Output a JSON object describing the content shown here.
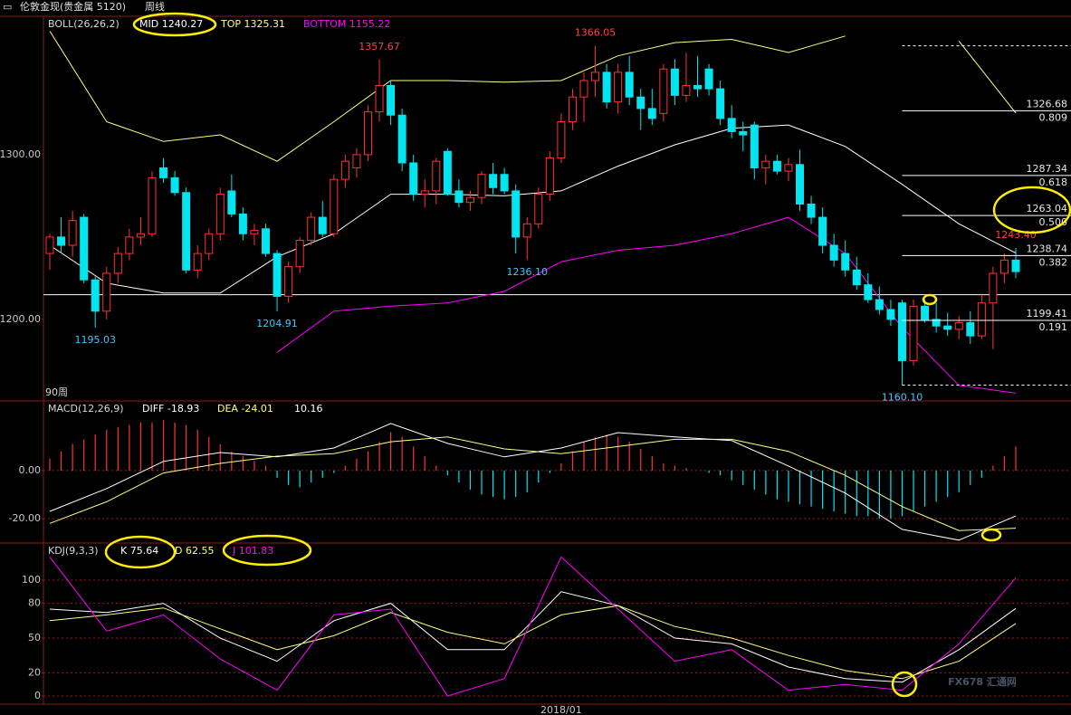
{
  "header": {
    "symbol": "伦敦金现(贵金属 5120)",
    "period": "周线"
  },
  "chart_data": [
    {
      "type": "candlestick",
      "indicator": "BOLL(26,26,2)",
      "period_count": "90周",
      "up_color": "#ff3232",
      "down_color": "#00e5f0",
      "ylim": [
        1150.5,
        1384
      ],
      "yticks": [
        {
          "value": 1200,
          "label": "1200.00"
        },
        {
          "value": 1300,
          "label": "1300.00"
        }
      ],
      "grid": false,
      "ohlc": [
        [
          1240,
          1252,
          1230,
          1250
        ],
        [
          1250,
          1262,
          1240,
          1245
        ],
        [
          1245,
          1266,
          1238,
          1260
        ],
        [
          1262,
          1264,
          1222,
          1224
        ],
        [
          1224,
          1226,
          1195.03,
          1205
        ],
        [
          1205,
          1232,
          1200,
          1228
        ],
        [
          1228,
          1244,
          1222,
          1240
        ],
        [
          1240,
          1255,
          1236,
          1250
        ],
        [
          1250,
          1262,
          1245,
          1252
        ],
        [
          1252,
          1290,
          1250,
          1286
        ],
        [
          1292,
          1298,
          1283,
          1286
        ],
        [
          1286,
          1290,
          1275,
          1277
        ],
        [
          1277,
          1280,
          1228,
          1230
        ],
        [
          1230,
          1245,
          1225,
          1240
        ],
        [
          1240,
          1255,
          1236,
          1252
        ],
        [
          1252,
          1280,
          1248,
          1276
        ],
        [
          1278,
          1288,
          1262,
          1264
        ],
        [
          1264,
          1268,
          1248,
          1252
        ],
        [
          1252,
          1258,
          1245,
          1254
        ],
        [
          1255,
          1258,
          1238,
          1240
        ],
        [
          1240,
          1242,
          1204.91,
          1214
        ],
        [
          1214,
          1235,
          1210,
          1232
        ],
        [
          1232,
          1250,
          1228,
          1248
        ],
        [
          1248,
          1265,
          1245,
          1262
        ],
        [
          1262,
          1272,
          1250,
          1252
        ],
        [
          1252,
          1288,
          1250,
          1285
        ],
        [
          1285,
          1300,
          1280,
          1296
        ],
        [
          1292,
          1304,
          1286,
          1300
        ],
        [
          1300,
          1330,
          1296,
          1326
        ],
        [
          1326,
          1357.67,
          1320,
          1342
        ],
        [
          1342,
          1345,
          1318,
          1324
        ],
        [
          1324,
          1328,
          1290,
          1295
        ],
        [
          1295,
          1300,
          1272,
          1276
        ],
        [
          1276,
          1285,
          1268,
          1278
        ],
        [
          1278,
          1298,
          1270,
          1296
        ],
        [
          1302,
          1304,
          1275,
          1276
        ],
        [
          1278,
          1285,
          1268,
          1271
        ],
        [
          1271,
          1278,
          1266,
          1274
        ],
        [
          1274,
          1290,
          1270,
          1288
        ],
        [
          1288,
          1295,
          1276,
          1280
        ],
        [
          1288,
          1292,
          1276,
          1278
        ],
        [
          1278,
          1282,
          1240,
          1250
        ],
        [
          1250,
          1262,
          1236.1,
          1258
        ],
        [
          1258,
          1280,
          1255,
          1276
        ],
        [
          1276,
          1302,
          1272,
          1298
        ],
        [
          1298,
          1325,
          1295,
          1320
        ],
        [
          1320,
          1340,
          1315,
          1335
        ],
        [
          1335,
          1350,
          1320,
          1345
        ],
        [
          1345,
          1366.05,
          1335,
          1350
        ],
        [
          1350,
          1355,
          1328,
          1332
        ],
        [
          1332,
          1355,
          1325,
          1350
        ],
        [
          1350,
          1360,
          1330,
          1335
        ],
        [
          1335,
          1340,
          1315,
          1328
        ],
        [
          1328,
          1340,
          1318,
          1322
        ],
        [
          1325,
          1355,
          1320,
          1352
        ],
        [
          1352,
          1358,
          1330,
          1336
        ],
        [
          1336,
          1362,
          1332,
          1342
        ],
        [
          1342,
          1360,
          1335,
          1340
        ],
        [
          1352,
          1355,
          1336,
          1340
        ],
        [
          1340,
          1345,
          1318,
          1322
        ],
        [
          1322,
          1330,
          1310,
          1314
        ],
        [
          1314,
          1320,
          1302,
          1312
        ],
        [
          1318,
          1320,
          1285,
          1292
        ],
        [
          1292,
          1300,
          1282,
          1296
        ],
        [
          1296,
          1300,
          1288,
          1290
        ],
        [
          1290,
          1298,
          1284,
          1294
        ],
        [
          1294,
          1303,
          1266,
          1270
        ],
        [
          1270,
          1275,
          1258,
          1262
        ],
        [
          1262,
          1268,
          1240,
          1245
        ],
        [
          1245,
          1252,
          1232,
          1236
        ],
        [
          1240,
          1248,
          1226,
          1230
        ],
        [
          1230,
          1238,
          1218,
          1221
        ],
        [
          1221,
          1228,
          1210,
          1212
        ],
        [
          1212,
          1220,
          1203,
          1206
        ],
        [
          1206,
          1212,
          1196,
          1200
        ],
        [
          1210,
          1212,
          1160.1,
          1175
        ],
        [
          1175,
          1212,
          1172,
          1208
        ],
        [
          1208,
          1212,
          1198,
          1200
        ],
        [
          1200,
          1210,
          1192,
          1196
        ],
        [
          1196,
          1204,
          1190,
          1194
        ],
        [
          1194,
          1202,
          1188,
          1198
        ],
        [
          1198,
          1205,
          1185,
          1190
        ],
        [
          1190,
          1215,
          1188,
          1210
        ],
        [
          1210,
          1232,
          1182,
          1228
        ],
        [
          1228,
          1240,
          1222,
          1236
        ],
        [
          1236,
          1243.4,
          1225,
          1229
        ]
      ],
      "line_x": [
        0,
        5,
        10,
        15,
        20,
        25,
        30,
        35,
        40,
        45,
        50,
        55,
        60,
        65,
        70,
        75,
        80,
        85
      ],
      "series": [
        {
          "name": "MID 1240.27",
          "color": "#ffffff",
          "values": [
            1245,
            1222,
            1216,
            1216,
            1238,
            1252,
            1276,
            1276,
            1275,
            1278,
            1293,
            1306,
            1316,
            1318,
            1305,
            1282,
            1258,
            1240.27
          ]
        },
        {
          "name": "TOP 1325.31",
          "color": "#ffff80",
          "values": [
            1375,
            1320,
            1308,
            1312,
            1296,
            1320,
            1345,
            1345,
            1344,
            1345,
            1360,
            1368,
            1370,
            1362,
            1372,
            null,
            1369,
            1325.31
          ]
        },
        {
          "name": "BOTTOM 1155.22",
          "color": "#ff00ff",
          "values": [
            null,
            null,
            null,
            null,
            1180,
            1205,
            1208,
            1210,
            1217,
            1235,
            1242,
            1245,
            1252,
            1262,
            1240,
            1195,
            1160,
            1155.22
          ]
        }
      ],
      "annotations": [
        {
          "x": 4,
          "value": 1195.03,
          "label": "1195.03"
        },
        {
          "x": 20,
          "value": 1204.91,
          "label": "1204.91"
        },
        {
          "x": 29,
          "value": 1357.67,
          "label": "1357.67"
        },
        {
          "x": 42,
          "value": 1236.1,
          "label": "1236.10"
        },
        {
          "x": 48,
          "value": 1366.05,
          "label": "1366.05"
        },
        {
          "x": 75,
          "value": 1160.1,
          "label": "1160.10"
        },
        {
          "x": 85,
          "value": 1243.4,
          "label": "1243.40"
        }
      ],
      "hline": 1215,
      "fib": {
        "start_x": 75,
        "color": "#ffffff",
        "levels": [
          {
            "value": 1326.68,
            "ratio": {
              "value": 0.809,
              "label": "0.809"
            }
          },
          {
            "value": 1287.34,
            "ratio": {
              "value": 0.618,
              "label": "0.618"
            }
          },
          {
            "value": 1263.04,
            "ratio": {
              "value": 0.5,
              "label": "0.500"
            }
          },
          {
            "value": 1238.74,
            "ratio": {
              "value": 0.382,
              "label": "0.382"
            }
          },
          {
            "value": 1199.41,
            "ratio": {
              "value": 0.191,
              "label": "0.191"
            }
          }
        ],
        "dashed": [
          1366.05,
          1160.1
        ]
      }
    },
    {
      "type": "macd",
      "indicator": "MACD(12,26,9)",
      "ylim": [
        -30.2,
        29
      ],
      "yticks": [
        {
          "value": -20,
          "label": "-20.00"
        },
        {
          "value": 0,
          "label": "0.00"
        }
      ],
      "grid": true,
      "histogram": {
        "name": "10.16",
        "color": "#ffffff",
        "up_color": "#ff3232",
        "down_color": "#00e5f0",
        "values": [
          5,
          8,
          11,
          13,
          15,
          17,
          18,
          19,
          20,
          20,
          21,
          20,
          19,
          17,
          14,
          11,
          8,
          6,
          4,
          2,
          -3,
          -6,
          -7,
          -5,
          -3,
          -1,
          2,
          5,
          8,
          12,
          16,
          14,
          10,
          6,
          2,
          -2,
          -5,
          -8,
          -10,
          -11,
          -12,
          -11,
          -9,
          -5,
          -1,
          3,
          8,
          12,
          14,
          15,
          14,
          12,
          9,
          6,
          3,
          2,
          1,
          0,
          -1,
          -2,
          -4,
          -6,
          -8,
          -10,
          -12,
          -13,
          -14,
          -15,
          -16,
          -17,
          -18,
          -19,
          -19,
          -20,
          -20,
          -19,
          -17,
          -15,
          -13,
          -11,
          -9,
          -6,
          -3,
          2,
          6,
          10.16
        ]
      },
      "line_x": [
        0,
        5,
        10,
        15,
        20,
        25,
        30,
        35,
        40,
        45,
        50,
        55,
        60,
        65,
        70,
        75,
        80,
        85
      ],
      "series": [
        {
          "name": "DIFF -18.93",
          "color": "#ffffff",
          "values": [
            -17,
            -7.5,
            3.8,
            7.5,
            5.7,
            9.4,
            19.6,
            11.3,
            5.7,
            9.4,
            15.8,
            14,
            12.5,
            1.9,
            -9.4,
            -24.5,
            -29,
            -18.93
          ]
        },
        {
          "name": "DEA -24.01",
          "color": "#ffff80",
          "values": [
            -22,
            -13,
            -1,
            3,
            6,
            7,
            12,
            14,
            9,
            7,
            10,
            13,
            13,
            8,
            -2,
            -15,
            -25,
            -24.01
          ]
        }
      ]
    },
    {
      "type": "kdj",
      "indicator": "KDJ(9,3,3)",
      "ylim": [
        -7,
        132
      ],
      "yticks": [
        0,
        20,
        50,
        80,
        100
      ],
      "grid": true,
      "xticks": [
        {
          "value": 45,
          "label": "2018/01"
        }
      ],
      "watermark": "FX678 汇通网",
      "line_x": [
        0,
        5,
        10,
        15,
        20,
        25,
        30,
        35,
        40,
        45,
        50,
        55,
        60,
        65,
        70,
        75,
        80,
        85
      ],
      "series": [
        {
          "name": "K 75.64",
          "color": "#ffffff",
          "values": [
            75,
            72,
            80,
            50,
            30,
            65,
            80,
            40,
            40,
            90,
            78,
            50,
            45,
            25,
            15,
            12,
            40,
            75.64
          ]
        },
        {
          "name": "D 62.55",
          "color": "#ffff80",
          "values": [
            65,
            70,
            76,
            58,
            40,
            52,
            72,
            55,
            45,
            70,
            78,
            60,
            50,
            35,
            22,
            15,
            30,
            62.55
          ]
        },
        {
          "name": "J 101.83",
          "color": "#ff00ff",
          "values": [
            120,
            56,
            70,
            32,
            5,
            70,
            75,
            0,
            15,
            120,
            75,
            30,
            40,
            5,
            10,
            5,
            45,
            101.83
          ]
        }
      ]
    }
  ]
}
